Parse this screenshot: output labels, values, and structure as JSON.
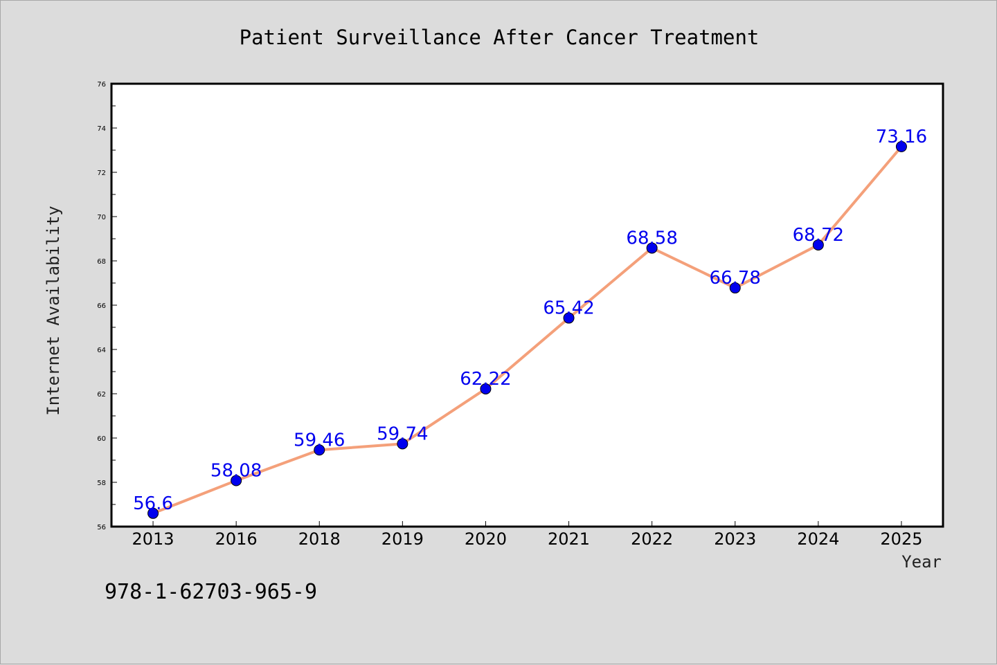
{
  "chart_data": {
    "type": "line",
    "title": "Patient Surveillance After Cancer Treatment",
    "xlabel": "Year",
    "ylabel": "Internet Availability",
    "categories": [
      "2013",
      "2016",
      "2018",
      "2019",
      "2020",
      "2021",
      "2022",
      "2023",
      "2024",
      "2025"
    ],
    "values": [
      56.6,
      58.08,
      59.46,
      59.74,
      62.22,
      65.42,
      68.58,
      66.78,
      68.72,
      73.16
    ],
    "data_labels": [
      "56.6",
      "58.08",
      "59.46",
      "59.74",
      "62.22",
      "65.42",
      "68.58",
      "66.78",
      "68.72",
      "73.16"
    ],
    "ylim": [
      56,
      76
    ],
    "yticks": [
      "56",
      "58",
      "60",
      "62",
      "64",
      "66",
      "68",
      "70",
      "72",
      "74",
      "76"
    ],
    "grid": false,
    "colors": {
      "line": "#f4a07a",
      "marker": "#0000ee",
      "data_label": "#0000ee",
      "background": "#dcdcdc",
      "plot_area": "#ffffff"
    }
  },
  "footer": {
    "isbn": "978-1-62703-965-9"
  }
}
